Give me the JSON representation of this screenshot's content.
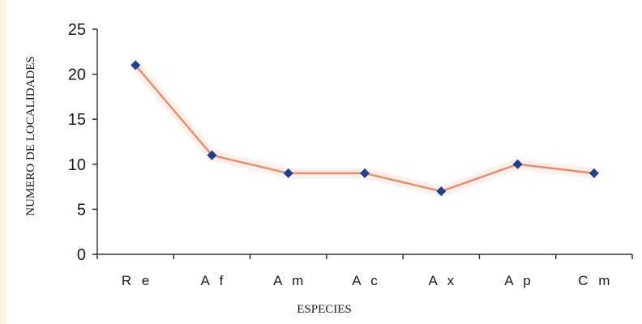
{
  "colors": {
    "background": "#ffffff",
    "page_margin": "#fbf3dc",
    "line": "#f08a6a",
    "marker": "#1f3f8f",
    "axis": "#333333"
  },
  "chart_data": {
    "type": "line",
    "title": "",
    "xlabel": "ESPECIES",
    "ylabel": "NUMERO DE LOCALIDADES",
    "categories": [
      "R e",
      "A f",
      "A m",
      "A c",
      "A x",
      "A p",
      "C m"
    ],
    "series": [
      {
        "values": [
          21,
          11,
          9,
          9,
          7,
          10,
          9
        ]
      }
    ],
    "ylim": [
      0,
      25
    ],
    "yticks": [
      0,
      5,
      10,
      15,
      20,
      25
    ],
    "grid": false,
    "legend": "none"
  }
}
